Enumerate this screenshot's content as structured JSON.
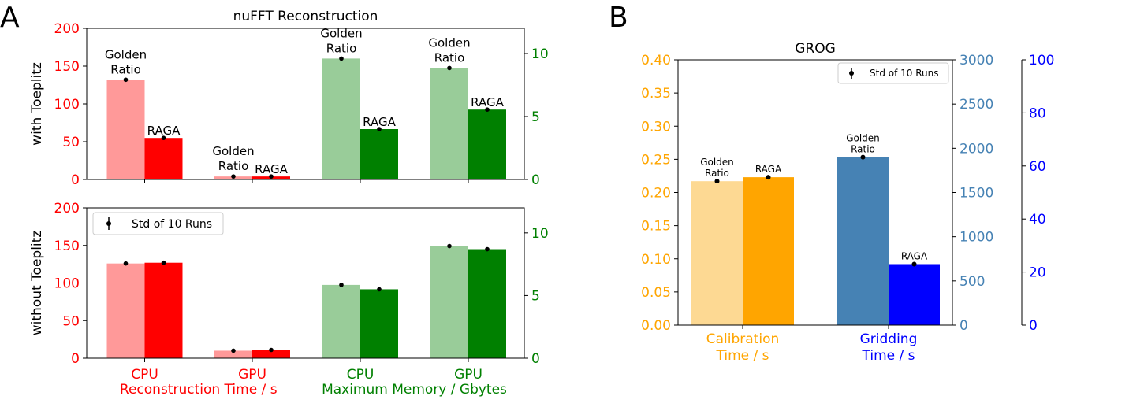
{
  "panel_labels": {
    "a": "A",
    "b": "B"
  },
  "chart_data": [
    {
      "id": "nufft",
      "type": "bar",
      "title": "nuFFT Reconstruction",
      "categories": [
        "CPU",
        "GPU",
        "CPU",
        "GPU"
      ],
      "group_labels": [
        "Reconstruction Time / s",
        "Maximum Memory / Gbytes"
      ],
      "colors": {
        "time_light": "#ff9999",
        "time": "#ff0000",
        "mem_light": "#99cc99",
        "mem": "#008000",
        "text_time": "#ff0000",
        "text_mem": "#008000"
      },
      "series_labels": [
        "Golden Ratio",
        "RAGA"
      ],
      "subplots": [
        {
          "ylabel": "with Toeplitz",
          "left_ylim": [
            0,
            200
          ],
          "left_ticks": [
            "0",
            "50",
            "100",
            "150",
            "200"
          ],
          "right_ylim": [
            0,
            12
          ],
          "right_ticks": [
            "0",
            "5",
            "10"
          ],
          "time": {
            "golden": [
              132,
              4
            ],
            "raga": [
              55,
              4
            ]
          },
          "memory": {
            "golden": [
              9.6,
              8.85
            ],
            "raga": [
              4.0,
              5.55
            ]
          },
          "bar_labels": true
        },
        {
          "ylabel": "without Toeplitz",
          "left_ylim": [
            0,
            200
          ],
          "left_ticks": [
            "0",
            "50",
            "100",
            "150",
            "200"
          ],
          "right_ylim": [
            0,
            12
          ],
          "right_ticks": [
            "0",
            "5",
            "10"
          ],
          "time": {
            "golden": [
              126,
              10
            ],
            "raga": [
              127,
              11
            ]
          },
          "memory": {
            "golden": [
              5.85,
              8.95
            ],
            "raga": [
              5.5,
              8.7
            ]
          },
          "bar_labels": false,
          "legend": "Std of 10 Runs"
        }
      ]
    },
    {
      "id": "grog",
      "type": "bar",
      "title": "GROG",
      "categories": [
        "Calibration\nTime / s",
        "Gridding\nTime / s"
      ],
      "colors": {
        "cal_light": "#fdd993",
        "cal": "#ffa500",
        "grid_light": "#4682b4",
        "grid": "#0000ff",
        "axis_cal": "#ffa500",
        "axis_grid": "#4682b4",
        "axis_raga": "#0000ff"
      },
      "axis_cal": {
        "ylim": [
          0,
          0.4
        ],
        "ticks": [
          "0.00",
          "0.05",
          "0.10",
          "0.15",
          "0.20",
          "0.25",
          "0.30",
          "0.35",
          "0.40"
        ]
      },
      "axis_grid": {
        "ylim": [
          0,
          3000
        ],
        "ticks": [
          "0",
          "500",
          "1000",
          "1500",
          "2000",
          "2500",
          "3000"
        ]
      },
      "axis_raga": {
        "ylim": [
          0,
          100
        ],
        "ticks": [
          "0",
          "20",
          "40",
          "60",
          "80",
          "100"
        ]
      },
      "calibration": {
        "golden": 0.217,
        "raga": 0.223
      },
      "gridding": {
        "golden": 1900,
        "raga": 23
      },
      "bar_labels": {
        "golden": "Golden\nRatio",
        "raga": "RAGA"
      },
      "legend": "Std of 10 Runs"
    }
  ]
}
